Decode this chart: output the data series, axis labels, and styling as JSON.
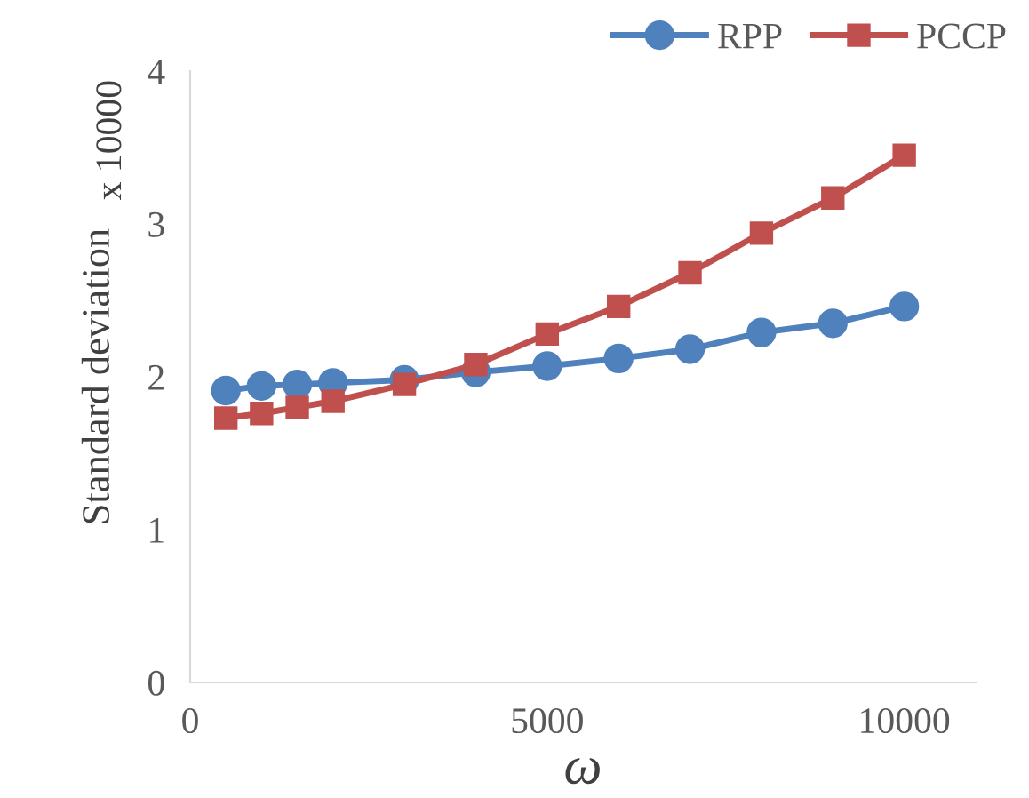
{
  "chart_data": {
    "type": "line",
    "xlabel": "ω",
    "ylabel": "Standard deviation",
    "annotations": [
      "x 10000"
    ],
    "x": [
      500,
      1000,
      1500,
      2000,
      3000,
      4000,
      5000,
      6000,
      7000,
      8000,
      9000,
      10000
    ],
    "series": [
      {
        "name": "RPP",
        "color": "#4f81bd",
        "marker": "circle",
        "values": [
          1.91,
          1.94,
          1.95,
          1.96,
          1.98,
          2.03,
          2.07,
          2.12,
          2.18,
          2.29,
          2.35,
          2.46
        ]
      },
      {
        "name": "PCCP",
        "color": "#c0504d",
        "marker": "square",
        "values": [
          1.73,
          1.76,
          1.8,
          1.84,
          1.95,
          2.08,
          2.28,
          2.46,
          2.68,
          2.94,
          3.17,
          3.45
        ]
      }
    ],
    "xlim": [
      0,
      11000
    ],
    "xticks": [
      0,
      5000,
      10000
    ],
    "ylim": [
      0,
      4
    ],
    "yticks": [
      0,
      1,
      2,
      3,
      4
    ],
    "grid": false,
    "legend": "top right",
    "line_style": "solid"
  }
}
